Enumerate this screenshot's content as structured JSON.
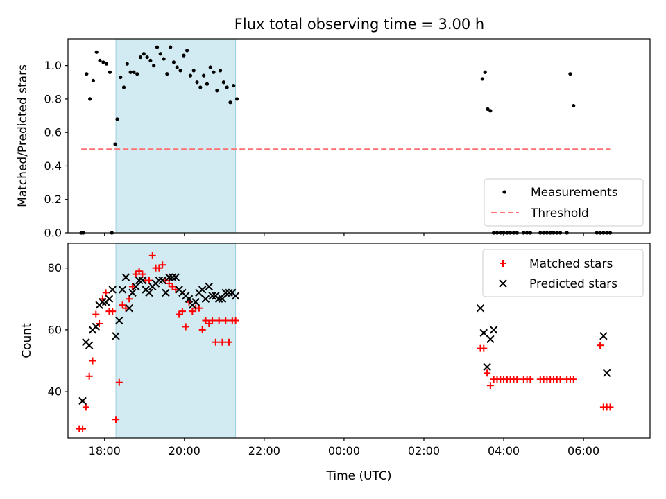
{
  "figure": {
    "title": "Flux total observing time = 3.00 h"
  },
  "chart_data": [
    {
      "type": "scatter",
      "panel": "top",
      "ylabel": "Matched/Predicted stars",
      "xlabel": "",
      "xlim": [
        "17:05",
        "31:40"
      ],
      "ylim": [
        0,
        1.16
      ],
      "yticks": [
        "0.0",
        "0.2",
        "0.4",
        "0.6",
        "0.8",
        "1.0"
      ],
      "grid": false,
      "legend_position": "lower-right",
      "highlight_span": {
        "x_start": "18:17",
        "x_end": "21:17",
        "color": "#add8e6"
      },
      "threshold": {
        "name": "Threshold",
        "value": 0.5,
        "x_start": "17:25",
        "x_end": "30:40",
        "color": "#ff6f6f"
      },
      "series": [
        {
          "name": "Measurements",
          "color": "#000000",
          "marker": "dot",
          "x": [
            "17:25",
            "17:28",
            "17:33",
            "17:38",
            "17:43",
            "17:48",
            "17:53",
            "17:58",
            "18:03",
            "18:08",
            "18:11",
            "18:16",
            "18:19",
            "18:24",
            "18:29",
            "18:34",
            "18:39",
            "18:44",
            "18:49",
            "18:54",
            "18:59",
            "19:04",
            "19:09",
            "19:14",
            "19:19",
            "19:24",
            "19:29",
            "19:34",
            "19:39",
            "19:44",
            "19:49",
            "19:54",
            "19:59",
            "20:04",
            "20:09",
            "20:14",
            "20:19",
            "20:24",
            "20:29",
            "20:34",
            "20:39",
            "20:44",
            "20:49",
            "20:54",
            "20:59",
            "21:04",
            "21:09",
            "21:14",
            "21:19",
            "27:28",
            "27:32",
            "27:36",
            "27:40",
            "27:45",
            "27:50",
            "27:55",
            "28:00",
            "28:05",
            "28:10",
            "28:15",
            "28:20",
            "28:30",
            "28:35",
            "28:40",
            "28:55",
            "29:00",
            "29:05",
            "29:10",
            "29:15",
            "29:20",
            "29:25",
            "29:35",
            "29:40",
            "29:45",
            "30:20",
            "30:25",
            "30:30",
            "30:35",
            "30:40"
          ],
          "y": [
            0,
            0,
            0.95,
            0.8,
            0.91,
            1.08,
            1.03,
            1.02,
            1.01,
            0.96,
            0,
            0.53,
            0.68,
            0.93,
            0.87,
            1.01,
            0.96,
            0.96,
            0.95,
            1.05,
            1.07,
            1.05,
            1.03,
            1.0,
            1.11,
            1.07,
            1.04,
            0.95,
            1.11,
            1.02,
            0.99,
            0.97,
            1.06,
            1.09,
            0.94,
            0.97,
            0.9,
            0.87,
            0.94,
            0.89,
            0.99,
            0.96,
            0.85,
            0.97,
            0.9,
            0.87,
            0.78,
            0.88,
            0.8,
            0.92,
            0.96,
            0.74,
            0.73,
            0,
            0,
            0,
            0,
            0,
            0,
            0,
            0,
            0,
            0,
            0,
            0,
            0,
            0,
            0,
            0,
            0,
            0,
            0,
            0.95,
            0.76,
            0,
            0,
            0,
            0,
            0
          ]
        }
      ]
    },
    {
      "type": "scatter",
      "panel": "bottom",
      "ylabel": "Count",
      "xlabel": "Time (UTC)",
      "xlim": [
        "17:05",
        "31:40"
      ],
      "ylim": [
        25,
        88
      ],
      "xticks": [
        "18:00",
        "20:00",
        "22:00",
        "00:00",
        "02:00",
        "04:00",
        "06:00"
      ],
      "yticks": [
        "40",
        "60",
        "80"
      ],
      "grid": false,
      "legend_position": "top-right",
      "highlight_span": {
        "x_start": "18:17",
        "x_end": "21:17",
        "color": "#add8e6"
      },
      "series": [
        {
          "name": "Matched stars",
          "color": "#ff0000",
          "marker": "plus",
          "x": [
            "17:22",
            "17:27",
            "17:32",
            "17:37",
            "17:42",
            "17:47",
            "17:52",
            "17:57",
            "18:02",
            "18:07",
            "18:12",
            "18:17",
            "18:22",
            "18:27",
            "18:32",
            "18:37",
            "18:42",
            "18:47",
            "18:52",
            "18:57",
            "19:02",
            "19:07",
            "19:12",
            "19:17",
            "19:22",
            "19:27",
            "19:32",
            "19:37",
            "19:42",
            "19:47",
            "19:52",
            "19:57",
            "20:02",
            "20:07",
            "20:12",
            "20:17",
            "20:22",
            "20:27",
            "20:32",
            "20:37",
            "20:42",
            "20:47",
            "20:52",
            "20:57",
            "21:02",
            "21:07",
            "21:12",
            "21:17",
            "27:25",
            "27:30",
            "27:35",
            "27:40",
            "27:45",
            "27:50",
            "27:55",
            "28:00",
            "28:05",
            "28:10",
            "28:15",
            "28:20",
            "28:30",
            "28:35",
            "28:40",
            "28:55",
            "29:00",
            "29:05",
            "29:10",
            "29:15",
            "29:20",
            "29:25",
            "29:35",
            "29:40",
            "29:45",
            "30:25",
            "30:30",
            "30:35",
            "30:40"
          ],
          "y": [
            28,
            28,
            35,
            45,
            50,
            65,
            62,
            70,
            72,
            66,
            66,
            31,
            43,
            68,
            67,
            70,
            74,
            78,
            79,
            78,
            76,
            76,
            84,
            80,
            80,
            81,
            76,
            75,
            74,
            73,
            65,
            66,
            61,
            69,
            66,
            67,
            67,
            60,
            63,
            62,
            63,
            56,
            63,
            56,
            63,
            56,
            63,
            63,
            54,
            54,
            46,
            42,
            44,
            44,
            44,
            44,
            44,
            44,
            44,
            44,
            44,
            44,
            44,
            44,
            44,
            44,
            44,
            44,
            44,
            44,
            44,
            44,
            44,
            55,
            35,
            35,
            35
          ]
        },
        {
          "name": "Predicted stars",
          "color": "#000000",
          "marker": "x",
          "x": [
            "17:27",
            "17:32",
            "17:37",
            "17:42",
            "17:47",
            "17:52",
            "17:57",
            "18:02",
            "18:07",
            "18:12",
            "18:17",
            "18:22",
            "18:27",
            "18:32",
            "18:37",
            "18:42",
            "18:47",
            "18:52",
            "18:57",
            "19:02",
            "19:07",
            "19:12",
            "19:17",
            "19:22",
            "19:27",
            "19:32",
            "19:37",
            "19:42",
            "19:47",
            "19:52",
            "19:57",
            "20:02",
            "20:07",
            "20:12",
            "20:17",
            "20:22",
            "20:27",
            "20:32",
            "20:37",
            "20:42",
            "20:47",
            "20:52",
            "20:57",
            "21:02",
            "21:07",
            "21:12",
            "21:17",
            "27:25",
            "27:30",
            "27:35",
            "27:40",
            "27:45",
            "30:30",
            "30:35"
          ],
          "y": [
            37,
            56,
            55,
            60,
            61,
            68,
            69,
            69,
            70,
            73,
            58,
            63,
            73,
            77,
            67,
            72,
            74,
            76,
            76,
            73,
            72,
            74,
            75,
            76,
            76,
            72,
            77,
            77,
            77,
            73,
            72,
            71,
            70,
            68,
            69,
            72,
            73,
            70,
            74,
            71,
            71,
            70,
            70,
            72,
            72,
            72,
            71,
            67,
            59,
            48,
            57,
            60,
            58,
            46
          ]
        }
      ]
    }
  ]
}
